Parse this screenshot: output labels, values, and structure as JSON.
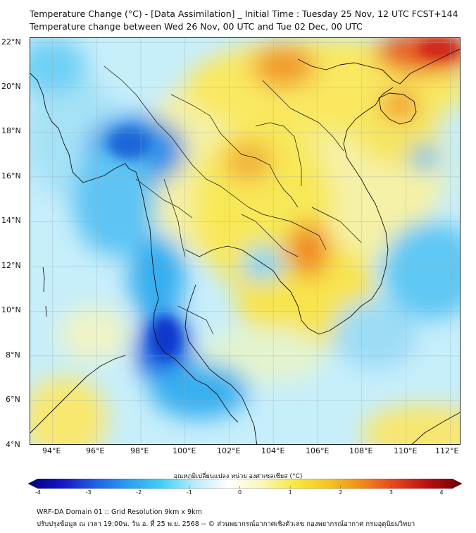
{
  "header": {
    "title_line1": "Temperature Change (°C) - [Data Assimilation] _ Initial Time : Tuesday 25 Nov, 12 UTC FCST+144",
    "title_line2": "Temperature change between Wed 26 Nov, 00 UTC and Tue 02 Dec, 00 UTC"
  },
  "map": {
    "lon_range": [
      93,
      112.5
    ],
    "lat_range": [
      4,
      22.2
    ],
    "lat_ticks": [
      "22°N",
      "20°N",
      "18°N",
      "16°N",
      "14°N",
      "12°N",
      "10°N",
      "8°N",
      "6°N",
      "4°N"
    ],
    "lon_ticks": [
      "94°E",
      "96°E",
      "98°E",
      "100°E",
      "102°E",
      "104°E",
      "106°E",
      "108°E",
      "110°E",
      "112°E"
    ]
  },
  "colorbar": {
    "title": "อุณหภูมิเปลี่ยนแปลง หน่วย องศาเซลเซียส (°C)",
    "min": -4,
    "max": 4,
    "ticks": [
      "-4",
      "-3",
      "-2",
      "-1",
      "0",
      "1",
      "2",
      "3",
      "4"
    ],
    "colors": [
      "#00007a",
      "#1515c8",
      "#1f5fe8",
      "#2aa0f2",
      "#40d0f8",
      "#b9ecfb",
      "#ffffff",
      "#fbf6b8",
      "#f9e840",
      "#f6c420",
      "#f28a18",
      "#e4441e",
      "#b80e10",
      "#6e0000"
    ]
  },
  "footer": {
    "line1": "WRF-DA Domain 01 :: Grid Resolution 9km x 9km",
    "line2": "ปรับปรุงข้อมูล ณ เวลา 19:00น. วัน อ. ที่ 25 พ.ย. 2568 -- © ส่วนพยากรณ์อากาศเชิงตัวเลข กองพยากรณ์อากาศ กรมอุตุนิยมวิทยา"
  }
}
